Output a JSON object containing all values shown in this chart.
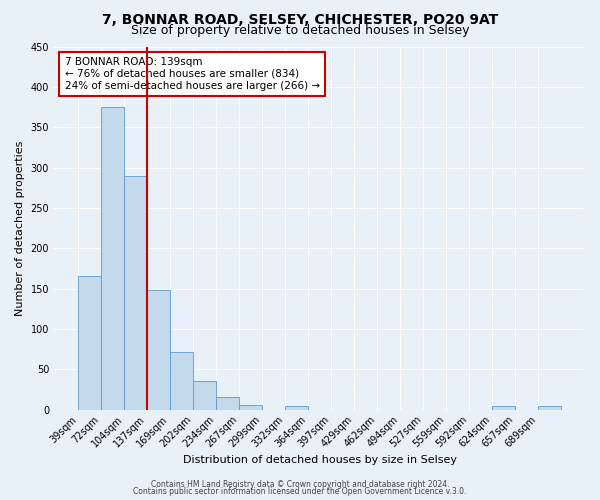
{
  "title": "7, BONNAR ROAD, SELSEY, CHICHESTER, PO20 9AT",
  "subtitle": "Size of property relative to detached houses in Selsey",
  "xlabel": "Distribution of detached houses by size in Selsey",
  "ylabel": "Number of detached properties",
  "bin_labels": [
    "39sqm",
    "72sqm",
    "104sqm",
    "137sqm",
    "169sqm",
    "202sqm",
    "234sqm",
    "267sqm",
    "299sqm",
    "332sqm",
    "364sqm",
    "397sqm",
    "429sqm",
    "462sqm",
    "494sqm",
    "527sqm",
    "559sqm",
    "592sqm",
    "624sqm",
    "657sqm",
    "689sqm"
  ],
  "bar_values": [
    165,
    375,
    290,
    148,
    71,
    35,
    15,
    6,
    0,
    5,
    0,
    0,
    0,
    0,
    0,
    0,
    0,
    0,
    4,
    0,
    4
  ],
  "bar_color": "#c5d9ed",
  "bar_edge_color": "#5b9bd5",
  "vline_x": 3,
  "vline_color": "#cc0000",
  "annotation_line1": "7 BONNAR ROAD: 139sqm",
  "annotation_line2": "← 76% of detached houses are smaller (834)",
  "annotation_line3": "24% of semi-detached houses are larger (266) →",
  "annotation_box_color": "#ffffff",
  "annotation_box_edge_color": "#cc0000",
  "ylim": [
    0,
    450
  ],
  "yticks": [
    0,
    50,
    100,
    150,
    200,
    250,
    300,
    350,
    400,
    450
  ],
  "footer_line1": "Contains HM Land Registry data © Crown copyright and database right 2024.",
  "footer_line2": "Contains public sector information licensed under the Open Government Licence v.3.0.",
  "background_color": "#e8f0f8",
  "plot_background_color": "#e8f0f8",
  "grid_color": "#ffffff",
  "title_fontsize": 10,
  "subtitle_fontsize": 9,
  "axis_label_fontsize": 8,
  "tick_fontsize": 7,
  "annotation_fontsize": 7.5,
  "footer_fontsize": 5.5
}
